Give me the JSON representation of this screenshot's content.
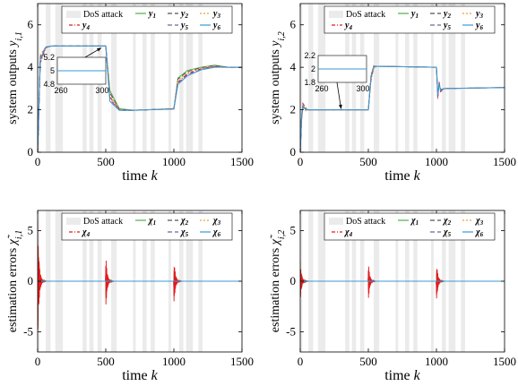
{
  "colors": {
    "y1": "#4daf4a",
    "y2": "#555555",
    "y3": "#f0a030",
    "y4": "#e41a1c",
    "y5": "#7b5ea8",
    "y6": "#3a9ad9",
    "dos": "#ebebeb"
  },
  "chart_data": [
    {
      "type": "line",
      "xlabel": "time k",
      "ylabel": "system outputs y_{i,1}",
      "xlim": [
        0,
        1500
      ],
      "ylim": [
        0,
        7
      ],
      "xticks": [
        "0",
        "500",
        "1000",
        "1500"
      ],
      "yticks": [
        "0",
        "2",
        "4",
        "6"
      ],
      "grid": false,
      "legend_position": "top",
      "legend": [
        "DoS attack",
        "y1",
        "y2",
        "y3",
        "y4",
        "y5",
        "y6"
      ],
      "dos_intervals": [
        [
          0,
          15
        ],
        [
          60,
          95
        ],
        [
          130,
          185
        ],
        [
          330,
          360
        ],
        [
          380,
          410
        ],
        [
          440,
          470
        ],
        [
          540,
          580
        ],
        [
          700,
          720
        ],
        [
          770,
          800
        ],
        [
          830,
          860
        ],
        [
          960,
          980
        ],
        [
          1040,
          1070
        ],
        [
          1090,
          1140
        ],
        [
          1180,
          1210
        ]
      ],
      "series": [
        {
          "name": "y1",
          "x": [
            0,
            20,
            60,
            100,
            500,
            530,
            600,
            700,
            800,
            1000,
            1030,
            1100,
            1200,
            1300,
            1400,
            1500
          ],
          "y": [
            0,
            4.4,
            4.95,
            5.0,
            5.0,
            2.9,
            2.05,
            1.98,
            2.0,
            2.05,
            3.5,
            3.85,
            4.0,
            4.1,
            4.0,
            4.0
          ]
        },
        {
          "name": "y2",
          "x": [
            0,
            20,
            60,
            100,
            500,
            530,
            600,
            700,
            800,
            1000,
            1030,
            1100,
            1200,
            1300,
            1400,
            1500
          ],
          "y": [
            0,
            4.5,
            4.95,
            5.0,
            5.0,
            2.8,
            2.02,
            1.98,
            2.0,
            2.05,
            3.45,
            3.8,
            3.98,
            4.08,
            4.0,
            4.0
          ]
        },
        {
          "name": "y3",
          "x": [
            0,
            20,
            60,
            100,
            500,
            530,
            600,
            700,
            800,
            1000,
            1030,
            1100,
            1200,
            1300,
            1400,
            1500
          ],
          "y": [
            0,
            4.6,
            4.97,
            5.0,
            5.0,
            2.7,
            2.0,
            1.97,
            2.0,
            2.06,
            3.4,
            3.75,
            3.95,
            4.05,
            4.0,
            4.0
          ]
        },
        {
          "name": "y4",
          "x": [
            0,
            20,
            60,
            100,
            500,
            530,
            600,
            700,
            800,
            1000,
            1030,
            1100,
            1200,
            1300,
            1400,
            1500
          ],
          "y": [
            0,
            4.2,
            4.92,
            5.0,
            5.0,
            2.6,
            1.98,
            1.97,
            2.0,
            2.04,
            3.3,
            3.7,
            3.93,
            4.04,
            4.0,
            4.0
          ]
        },
        {
          "name": "y5",
          "x": [
            0,
            20,
            60,
            100,
            500,
            530,
            600,
            700,
            800,
            1000,
            1030,
            1100,
            1200,
            1300,
            1400,
            1500
          ],
          "y": [
            0,
            4.3,
            4.93,
            5.0,
            5.0,
            2.5,
            1.97,
            1.97,
            2.0,
            2.04,
            3.25,
            3.65,
            3.9,
            4.02,
            4.0,
            4.0
          ]
        },
        {
          "name": "y6",
          "x": [
            0,
            20,
            60,
            100,
            500,
            530,
            600,
            700,
            800,
            1000,
            1030,
            1100,
            1200,
            1300,
            1400,
            1500
          ],
          "y": [
            0,
            4.4,
            4.95,
            5.0,
            5.0,
            2.4,
            1.97,
            1.97,
            2.0,
            2.03,
            3.2,
            3.6,
            3.88,
            4.0,
            4.0,
            4.0
          ]
        }
      ],
      "inset": {
        "xlim": [
          260,
          300
        ],
        "ylim": [
          4.8,
          5.2
        ],
        "xticks": [
          "260",
          "300"
        ],
        "yticks": [
          "5.2",
          "5",
          "4.8"
        ],
        "value": 5.0,
        "arrow_to": [
          500,
          5.0
        ]
      }
    },
    {
      "type": "line",
      "xlabel": "time k",
      "ylabel": "system outputs y_{i,2}",
      "xlim": [
        0,
        1500
      ],
      "ylim": [
        0,
        7
      ],
      "xticks": [
        "0",
        "500",
        "1000",
        "1500"
      ],
      "yticks": [
        "0",
        "2",
        "4",
        "6"
      ],
      "grid": false,
      "legend_position": "top",
      "legend": [
        "DoS attack",
        "y1",
        "y2",
        "y3",
        "y4",
        "y5",
        "y6"
      ],
      "dos_intervals": [
        [
          0,
          15
        ],
        [
          60,
          95
        ],
        [
          130,
          185
        ],
        [
          330,
          360
        ],
        [
          380,
          410
        ],
        [
          440,
          470
        ],
        [
          540,
          580
        ],
        [
          700,
          720
        ],
        [
          770,
          800
        ],
        [
          830,
          860
        ],
        [
          960,
          980
        ],
        [
          1040,
          1070
        ],
        [
          1090,
          1140
        ],
        [
          1180,
          1210
        ]
      ],
      "series": [
        {
          "name": "y1",
          "x": [
            0,
            10,
            20,
            40,
            60,
            500,
            520,
            540,
            560,
            1000,
            1010,
            1020,
            1030,
            1060,
            1500
          ],
          "y": [
            0,
            1.6,
            2.15,
            2.05,
            2.0,
            2.0,
            3.5,
            4.0,
            4.05,
            4.0,
            2.8,
            3.2,
            2.9,
            3.0,
            3.05
          ]
        },
        {
          "name": "y2",
          "x": [
            0,
            10,
            20,
            40,
            60,
            500,
            520,
            540,
            560,
            1000,
            1010,
            1020,
            1030,
            1060,
            1500
          ],
          "y": [
            0,
            1.7,
            2.2,
            2.0,
            2.0,
            2.0,
            3.6,
            4.05,
            4.05,
            4.0,
            2.7,
            3.25,
            2.95,
            3.0,
            3.05
          ]
        },
        {
          "name": "y3",
          "x": [
            0,
            10,
            20,
            40,
            60,
            500,
            520,
            540,
            560,
            1000,
            1010,
            1020,
            1030,
            1060,
            1500
          ],
          "y": [
            0,
            1.8,
            2.25,
            1.95,
            2.0,
            2.0,
            3.7,
            4.1,
            4.05,
            4.0,
            2.6,
            3.3,
            2.9,
            3.0,
            3.05
          ]
        },
        {
          "name": "y4",
          "x": [
            0,
            10,
            20,
            40,
            60,
            500,
            520,
            540,
            560,
            1000,
            1010,
            1020,
            1030,
            1060,
            1500
          ],
          "y": [
            0,
            1.5,
            2.3,
            2.1,
            2.0,
            2.0,
            3.4,
            4.0,
            4.05,
            4.0,
            2.5,
            3.35,
            2.85,
            3.0,
            3.05
          ]
        },
        {
          "name": "y5",
          "x": [
            0,
            10,
            20,
            40,
            60,
            500,
            520,
            540,
            560,
            1000,
            1010,
            1020,
            1030,
            1060,
            1500
          ],
          "y": [
            0,
            1.6,
            2.1,
            2.05,
            2.0,
            2.0,
            3.5,
            4.05,
            4.05,
            4.0,
            2.6,
            3.2,
            2.95,
            3.0,
            3.05
          ]
        },
        {
          "name": "y6",
          "x": [
            0,
            10,
            20,
            40,
            60,
            500,
            520,
            540,
            560,
            1000,
            1010,
            1020,
            1030,
            1060,
            1500
          ],
          "y": [
            0,
            1.7,
            2.2,
            2.0,
            2.0,
            2.0,
            3.6,
            4.0,
            4.05,
            4.0,
            2.7,
            3.25,
            2.9,
            3.0,
            3.05
          ]
        }
      ],
      "inset": {
        "xlim": [
          260,
          300
        ],
        "ylim": [
          1.8,
          2.2
        ],
        "xticks": [
          "260",
          "300"
        ],
        "yticks": [
          "2.2",
          "2",
          "1.8"
        ],
        "value": 2.0,
        "arrow_to": [
          300,
          2.0
        ]
      }
    },
    {
      "type": "line",
      "xlabel": "time k",
      "ylabel": "estimation errors χ̃_{i,1}",
      "xlim": [
        0,
        1500
      ],
      "ylim": [
        -7,
        7
      ],
      "xticks": [
        "0",
        "500",
        "1000",
        "1500"
      ],
      "yticks": [
        "-5",
        "0",
        "5"
      ],
      "grid": false,
      "legend_position": "top",
      "legend": [
        "DoS attack",
        "χ1",
        "χ2",
        "χ3",
        "χ4",
        "χ5",
        "χ6"
      ],
      "dos_intervals": [
        [
          0,
          15
        ],
        [
          60,
          95
        ],
        [
          130,
          185
        ],
        [
          330,
          360
        ],
        [
          380,
          410
        ],
        [
          440,
          470
        ],
        [
          540,
          580
        ],
        [
          700,
          720
        ],
        [
          770,
          800
        ],
        [
          830,
          860
        ],
        [
          960,
          980
        ],
        [
          1040,
          1070
        ],
        [
          1090,
          1140
        ],
        [
          1180,
          1210
        ]
      ],
      "spike_amplitudes": {
        "chi4": [
          6.0,
          2.8,
          2.6
        ],
        "chi1": [
          5.5,
          2.0,
          1.9
        ],
        "chi2": [
          5.0,
          1.8,
          1.7
        ],
        "chi3": [
          4.5,
          1.6,
          1.5
        ],
        "chi5": [
          4.0,
          1.5,
          1.4
        ],
        "chi6": [
          3.0,
          1.3,
          1.2
        ]
      },
      "spike_times": [
        0,
        500,
        1000
      ],
      "steady_value": 0
    },
    {
      "type": "line",
      "xlabel": "time k",
      "ylabel": "estimation errors χ̃_{i,2}",
      "xlim": [
        0,
        1500
      ],
      "ylim": [
        -7,
        7
      ],
      "xticks": [
        "0",
        "500",
        "1000",
        "1500"
      ],
      "yticks": [
        "-5",
        "0",
        "5"
      ],
      "grid": false,
      "legend_position": "top",
      "legend": [
        "DoS attack",
        "χ1",
        "χ2",
        "χ3",
        "χ4",
        "χ5",
        "χ6"
      ],
      "dos_intervals": [
        [
          0,
          15
        ],
        [
          60,
          95
        ],
        [
          130,
          185
        ],
        [
          330,
          360
        ],
        [
          380,
          410
        ],
        [
          440,
          470
        ],
        [
          540,
          580
        ],
        [
          700,
          720
        ],
        [
          770,
          800
        ],
        [
          830,
          860
        ],
        [
          960,
          980
        ],
        [
          1040,
          1070
        ],
        [
          1090,
          1140
        ],
        [
          1180,
          1210
        ]
      ],
      "spike_amplitudes": {
        "chi4": [
          2.0,
          2.0,
          2.2
        ],
        "chi1": [
          1.8,
          1.2,
          1.8
        ],
        "chi2": [
          1.6,
          1.0,
          1.6
        ],
        "chi3": [
          1.4,
          0.9,
          1.4
        ],
        "chi5": [
          1.3,
          0.8,
          1.3
        ],
        "chi6": [
          1.2,
          0.7,
          1.2
        ]
      },
      "spike_times": [
        0,
        500,
        1000
      ],
      "steady_value": 0
    }
  ]
}
